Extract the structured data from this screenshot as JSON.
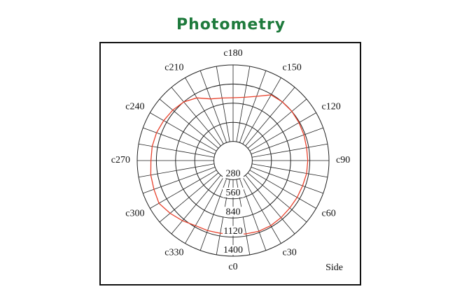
{
  "chart_data": {
    "type": "polar",
    "title": "Photometry",
    "annotation": "Side",
    "rlim": [
      0,
      1400
    ],
    "rticks": [
      280,
      560,
      840,
      1120,
      1400
    ],
    "angle_ticks": [
      {
        "value": 0,
        "label": "c0"
      },
      {
        "value": 30,
        "label": "c30"
      },
      {
        "value": 60,
        "label": "c60"
      },
      {
        "value": 90,
        "label": "c90"
      },
      {
        "value": 120,
        "label": "c120"
      },
      {
        "value": 150,
        "label": "c150"
      },
      {
        "value": 180,
        "label": "c180"
      },
      {
        "value": 210,
        "label": "c210"
      },
      {
        "value": 240,
        "label": "c240"
      },
      {
        "value": 270,
        "label": "c270"
      },
      {
        "value": 300,
        "label": "c300"
      },
      {
        "value": 330,
        "label": "c330"
      }
    ],
    "theta": [
      0,
      10,
      20,
      30,
      40,
      50,
      60,
      70,
      80,
      90,
      100,
      110,
      120,
      130,
      140,
      150,
      160,
      170,
      180,
      190,
      200,
      210,
      220,
      230,
      240,
      250,
      260,
      270,
      280,
      290,
      300,
      310,
      320,
      330,
      340,
      350
    ],
    "values": [
      1080,
      1090,
      1100,
      1100,
      1090,
      1080,
      1080,
      1080,
      1090,
      1090,
      1090,
      1100,
      1110,
      1120,
      1120,
      1110,
      1000,
      940,
      920,
      930,
      960,
      1060,
      1120,
      1150,
      1170,
      1190,
      1200,
      1200,
      1220,
      1230,
      1250,
      1200,
      1150,
      1100,
      1090,
      1080
    ],
    "color": "#e8412c"
  }
}
